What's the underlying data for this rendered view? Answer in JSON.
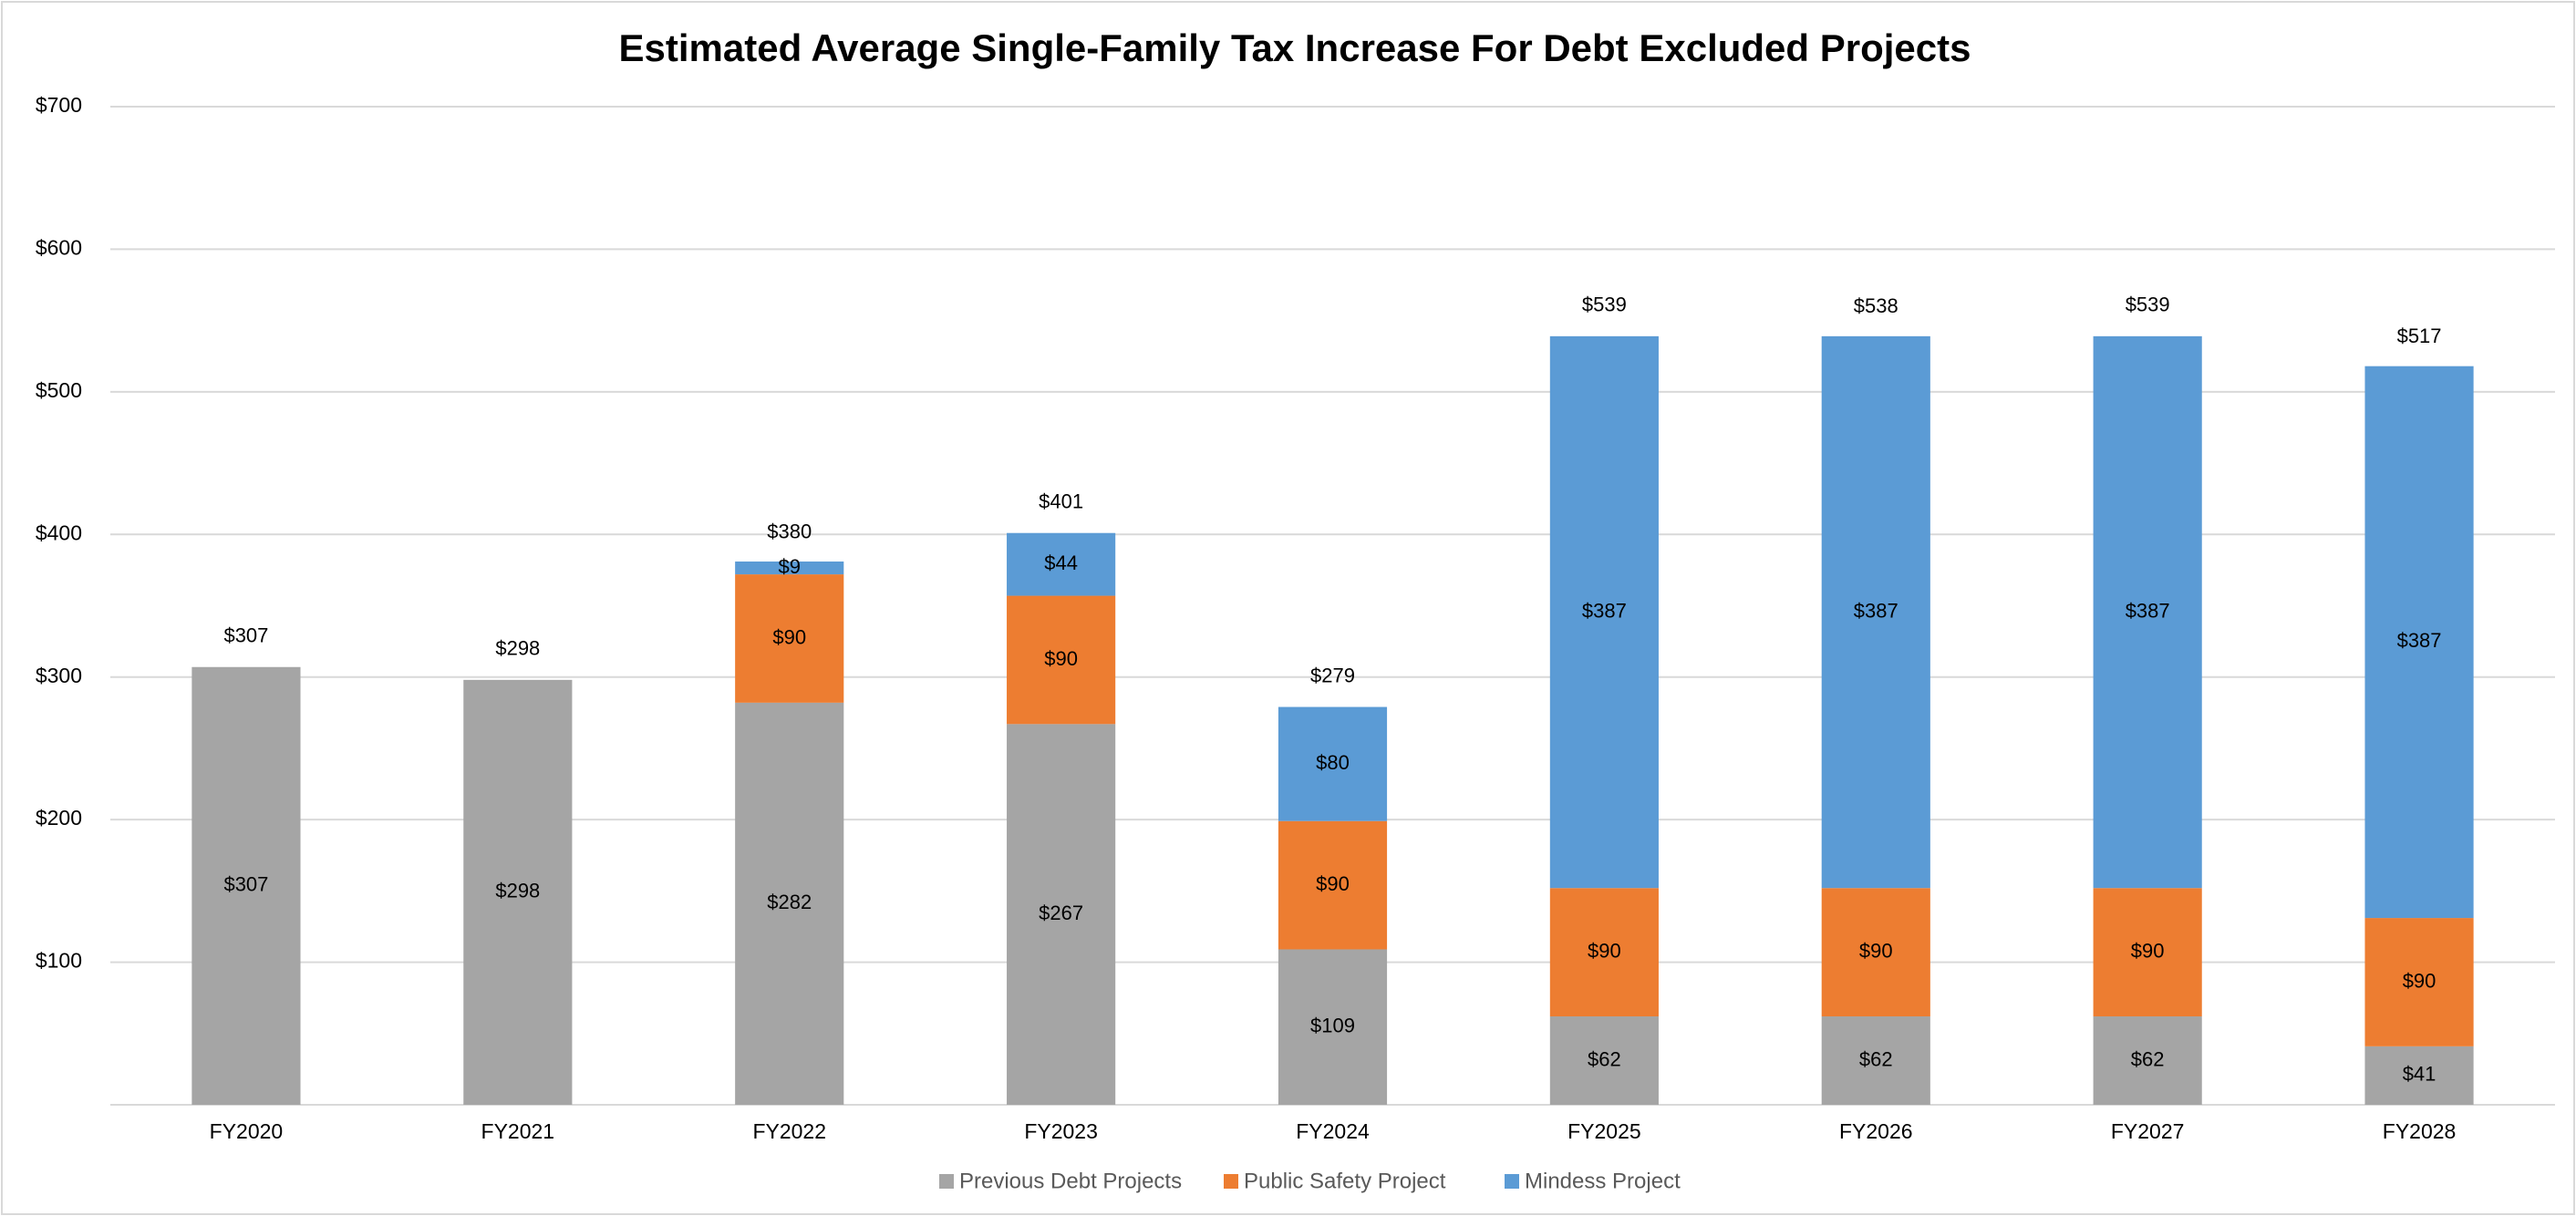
{
  "chart_data": {
    "type": "stacked_bar",
    "title": "Estimated Average Single-Family Tax Increase For Debt Excluded Projects",
    "categories": [
      "FY2020",
      "FY2021",
      "FY2022",
      "FY2023",
      "FY2024",
      "FY2025",
      "FY2026",
      "FY2027",
      "FY2028"
    ],
    "series": [
      {
        "name": "Previous Debt Projects",
        "color": "#a5a5a5",
        "values": [
          307,
          298,
          282,
          267,
          109,
          62,
          62,
          62,
          41
        ],
        "value_labels": [
          "$307",
          "$298",
          "$282",
          "$267",
          "$109",
          "$62",
          "$62",
          "$62",
          "$41"
        ]
      },
      {
        "name": "Public Safety Project",
        "color": "#ed7d31",
        "values": [
          null,
          null,
          90,
          90,
          90,
          90,
          90,
          90,
          90
        ],
        "value_labels": [
          null,
          null,
          "$90",
          "$90",
          "$90",
          "$90",
          "$90",
          "$90",
          "$90"
        ]
      },
      {
        "name": "Mindess Project",
        "color": "#5b9bd5",
        "values": [
          null,
          null,
          9,
          44,
          80,
          387,
          387,
          387,
          387
        ],
        "value_labels": [
          null,
          null,
          "$9",
          "$44",
          "$80",
          "$387",
          "$387",
          "$387",
          "$387"
        ]
      }
    ],
    "totals": [
      307,
      298,
      380,
      401,
      279,
      539,
      538,
      539,
      517
    ],
    "totals_labels": [
      "$307",
      "$298",
      "$380",
      "$401",
      "$279",
      "$539",
      "$538",
      "$539",
      "$517"
    ],
    "ylim": [
      0,
      700
    ],
    "yticks": [
      {
        "value": 100,
        "label": "$100"
      },
      {
        "value": 200,
        "label": "$200"
      },
      {
        "value": 300,
        "label": "$300"
      },
      {
        "value": 400,
        "label": "$400"
      },
      {
        "value": 500,
        "label": "$500"
      },
      {
        "value": 600,
        "label": "$600"
      },
      {
        "value": 700,
        "label": "$700"
      }
    ],
    "grid": true,
    "legend": "bottom"
  }
}
